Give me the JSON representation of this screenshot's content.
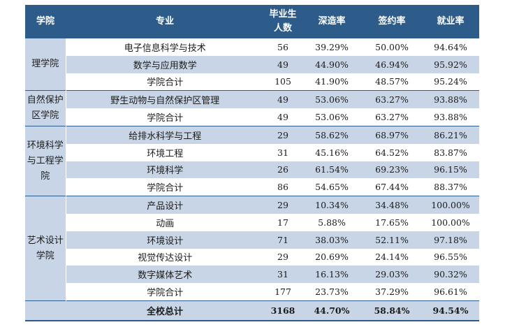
{
  "headers": [
    "学院",
    "专业",
    "毕业生人数",
    "深造率",
    "签约率",
    "就业率"
  ],
  "header_lines": {
    "col2_line1": "毕业生",
    "col2_line2": "人数"
  },
  "groups": [
    {
      "college": "理学院",
      "rows": [
        {
          "major": "电子信息科学与技术",
          "count": "56",
          "further": "39.29%",
          "signed": "50.00%",
          "employed": "94.64%"
        },
        {
          "major": "数学与应用数学",
          "count": "49",
          "further": "44.90%",
          "signed": "46.94%",
          "employed": "95.92%"
        },
        {
          "major": "学院合计",
          "count": "105",
          "further": "41.90%",
          "signed": "48.57%",
          "employed": "95.24%"
        }
      ]
    },
    {
      "college": "自然保护区学院",
      "rows": [
        {
          "major": "野生动物与自然保护区管理",
          "count": "49",
          "further": "53.06%",
          "signed": "63.27%",
          "employed": "93.88%"
        },
        {
          "major": "学院合计",
          "count": "49",
          "further": "53.06%",
          "signed": "63.27%",
          "employed": "93.88%"
        }
      ]
    },
    {
      "college": "环境科学与工程学院",
      "rows": [
        {
          "major": "给排水科学与工程",
          "count": "29",
          "further": "58.62%",
          "signed": "68.97%",
          "employed": "86.21%"
        },
        {
          "major": "环境工程",
          "count": "31",
          "further": "45.16%",
          "signed": "64.52%",
          "employed": "83.87%"
        },
        {
          "major": "环境科学",
          "count": "26",
          "further": "61.54%",
          "signed": "69.23%",
          "employed": "96.15%"
        },
        {
          "major": "学院合计",
          "count": "86",
          "further": "54.65%",
          "signed": "67.44%",
          "employed": "88.37%"
        }
      ]
    },
    {
      "college": "艺术设计学院",
      "rows": [
        {
          "major": "产品设计",
          "count": "29",
          "further": "10.34%",
          "signed": "34.48%",
          "employed": "100.00%"
        },
        {
          "major": "动画",
          "count": "17",
          "further": "5.88%",
          "signed": "17.65%",
          "employed": "100.00%"
        },
        {
          "major": "环境设计",
          "count": "71",
          "further": "38.03%",
          "signed": "52.11%",
          "employed": "97.18%"
        },
        {
          "major": "视觉传达设计",
          "count": "29",
          "further": "20.69%",
          "signed": "24.14%",
          "employed": "96.55%"
        },
        {
          "major": "数字媒体艺术",
          "count": "31",
          "further": "16.13%",
          "signed": "29.03%",
          "employed": "90.32%"
        },
        {
          "major": "学院合计",
          "count": "177",
          "further": "23.73%",
          "signed": "37.29%",
          "employed": "96.61%"
        }
      ]
    }
  ],
  "total": {
    "label": "全校总计",
    "count": "3168",
    "further": "44.70%",
    "signed": "58.84%",
    "employed": "94.54%"
  },
  "colors": {
    "header_bg": "#2e5c8a",
    "shade_bg": "#c8d5e6",
    "text": "#1a1a1a"
  }
}
